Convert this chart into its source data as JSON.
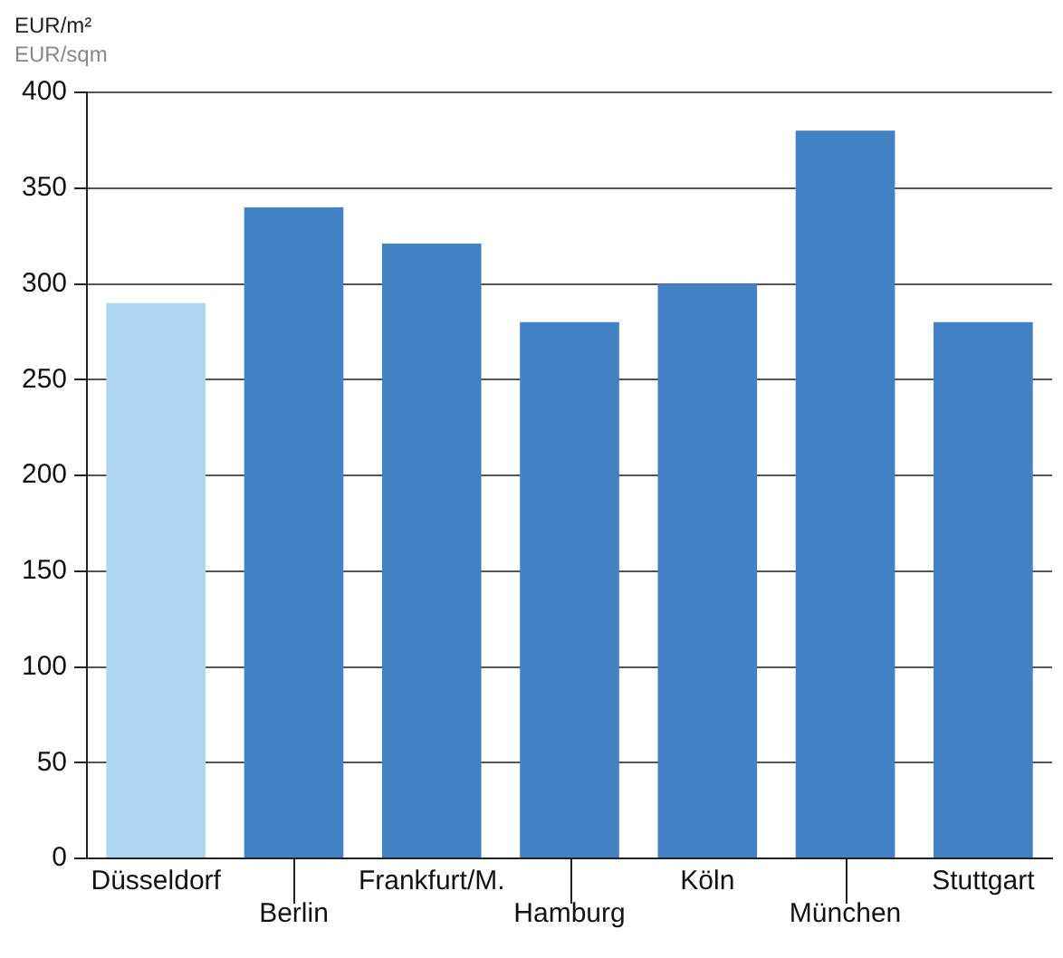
{
  "chart_data": {
    "type": "bar",
    "ylabel": "EUR/m²",
    "subtitle": "EUR/sqm",
    "categories": [
      "Düsseldorf",
      "Berlin",
      "Frankfurt/M.",
      "Hamburg",
      "Köln",
      "München",
      "Stuttgart"
    ],
    "values": [
      290,
      340,
      321,
      280,
      300,
      380,
      280
    ],
    "colors": [
      "#aed6f1",
      "#4282c4",
      "#4282c4",
      "#4282c4",
      "#4282c4",
      "#4282c4",
      "#4282c4"
    ],
    "ylim": [
      0,
      400
    ],
    "yticks": [
      0,
      50,
      100,
      150,
      200,
      250,
      300,
      350,
      400
    ],
    "grid": "y",
    "legend": false
  }
}
